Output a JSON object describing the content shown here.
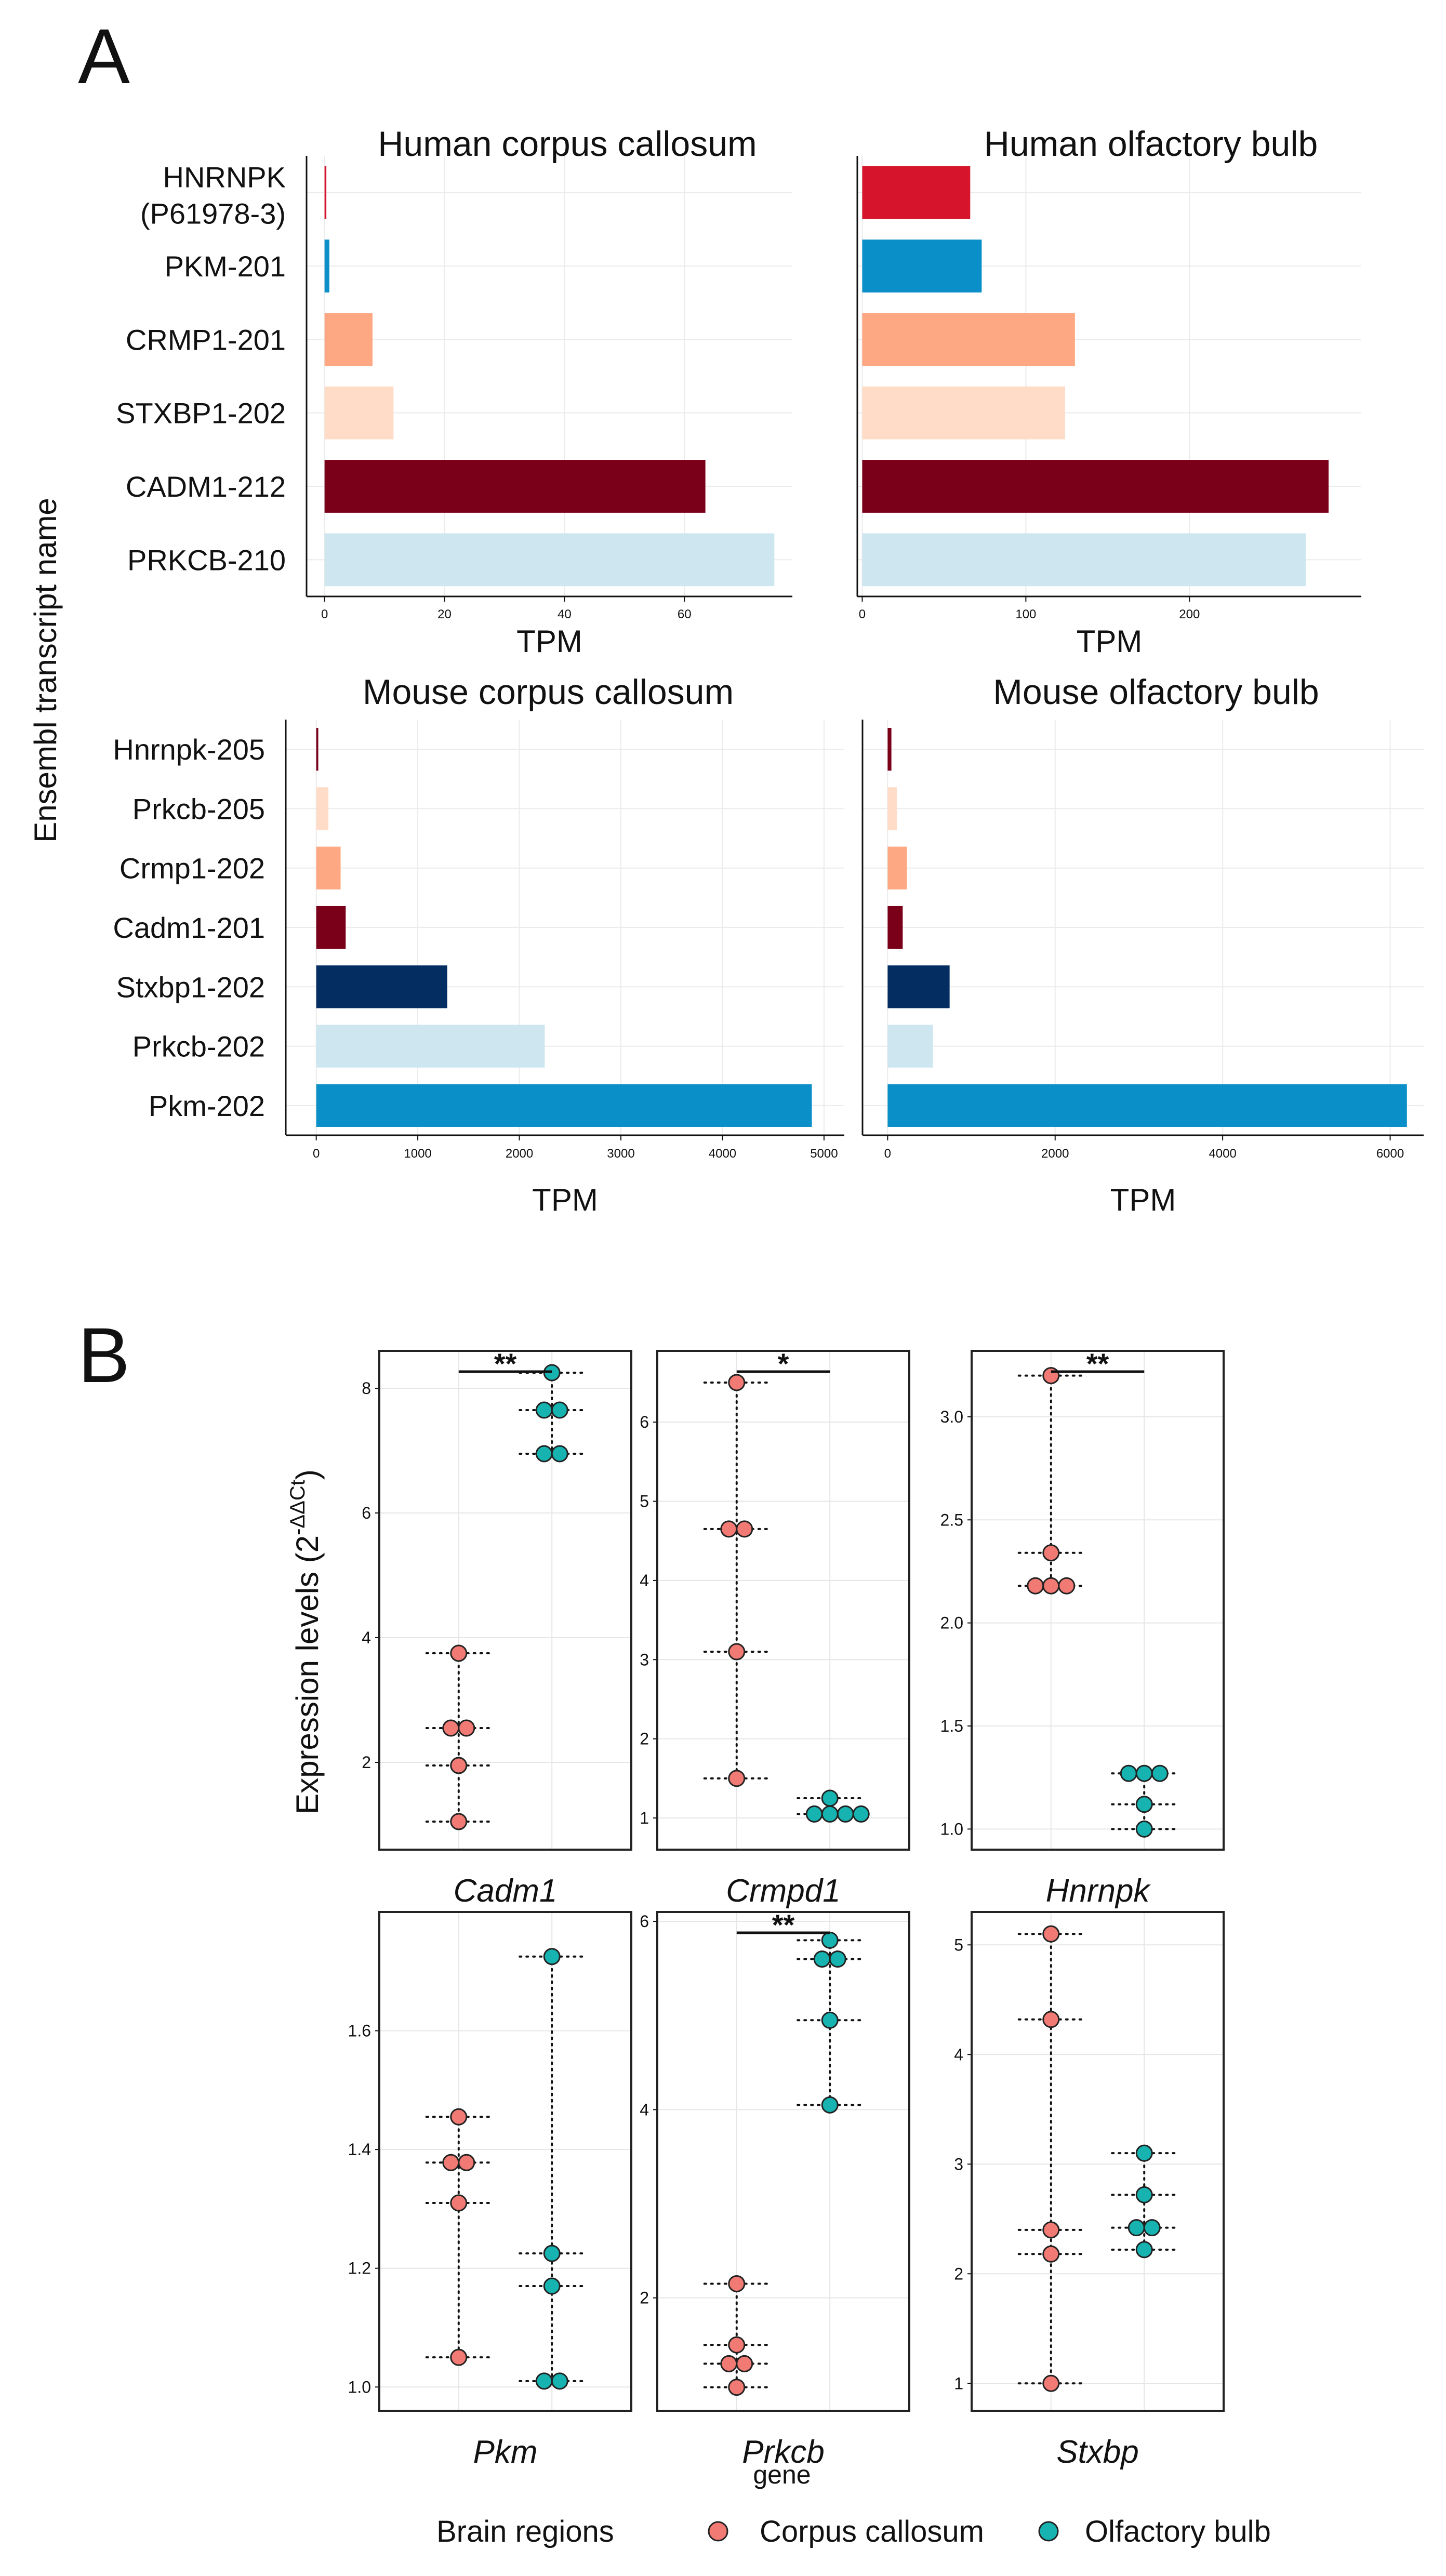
{
  "panels": {
    "a": "A",
    "b": "B"
  },
  "colors": {
    "hnrnpk": "#d6152d",
    "pkm": "#0a8fc8",
    "crmp1": "#fda882",
    "stxbp1_light": "#ffdcc8",
    "cadm1": "#7a0019",
    "prkcb_light": "#cde6f0",
    "stxbp1_mouse": "#042d62",
    "corpus": "#f17a74",
    "olfactory": "#16b3b0"
  },
  "chart_data": [
    {
      "type": "bar",
      "orientation": "horizontal",
      "title": "Human corpus callosum",
      "xlabel": "TPM",
      "ylabel": "Ensembl transcript name",
      "xlim": [
        -3,
        78
      ],
      "xticks": [
        0,
        20,
        40,
        60
      ],
      "xtick_labels": [
        "0",
        "20",
        "40",
        "60"
      ],
      "categories": [
        "HNRNPK (P61978-3)",
        "PKM-201",
        "CRMP1-201",
        "STXBP1-202",
        "CADM1-212",
        "PRKCB-210"
      ],
      "category_lines": [
        [
          "HNRNPK",
          "(P61978-3)"
        ],
        [
          "PKM-201"
        ],
        [
          "CRMP1-201"
        ],
        [
          "STXBP1-202"
        ],
        [
          "CADM1-212"
        ],
        [
          "PRKCB-210"
        ]
      ],
      "values": [
        0.3,
        0.8,
        8,
        11.5,
        63.5,
        75
      ],
      "bar_colors": [
        "hnrnpk",
        "pkm",
        "crmp1",
        "stxbp1_light",
        "cadm1",
        "prkcb_light"
      ]
    },
    {
      "type": "bar",
      "orientation": "horizontal",
      "title": "Human olfactory bulb",
      "xlabel": "TPM",
      "xlim": [
        -3,
        305
      ],
      "xticks": [
        0,
        100,
        200
      ],
      "xtick_labels": [
        "0",
        "100",
        "200"
      ],
      "categories": [
        "HNRNPK (P61978-3)",
        "PKM-201",
        "CRMP1-201",
        "STXBP1-202",
        "CADM1-212",
        "PRKCB-210"
      ],
      "values": [
        66,
        73,
        130,
        124,
        285,
        271
      ],
      "bar_colors": [
        "hnrnpk",
        "pkm",
        "crmp1",
        "stxbp1_light",
        "cadm1",
        "prkcb_light"
      ]
    },
    {
      "type": "bar",
      "orientation": "horizontal",
      "title": "Mouse corpus callosum",
      "xlabel": "TPM",
      "xlim": [
        -300,
        5200
      ],
      "xticks": [
        0,
        1000,
        2000,
        3000,
        4000,
        5000
      ],
      "xtick_labels": [
        "0",
        "1000",
        "2000",
        "3000",
        "4000",
        "5000"
      ],
      "categories": [
        "Hnrnpk-205",
        "Prkcb-205",
        "Crmp1-202",
        "Cadm1-201",
        "Stxbp1-202",
        "Prkcb-202",
        "Pkm-202"
      ],
      "category_lines": [
        [
          "Hnrnpk-205"
        ],
        [
          "Prkcb-205"
        ],
        [
          "Crmp1-202"
        ],
        [
          "Cadm1-201"
        ],
        [
          "Stxbp1-202"
        ],
        [
          "Prkcb-202"
        ],
        [
          "Pkm-202"
        ]
      ],
      "values": [
        20,
        120,
        240,
        290,
        1290,
        2250,
        4880
      ],
      "bar_colors": [
        "cadm1",
        "stxbp1_light",
        "crmp1",
        "cadm1",
        "stxbp1_mouse",
        "prkcb_light",
        "pkm"
      ]
    },
    {
      "type": "bar",
      "orientation": "horizontal",
      "title": "Mouse olfactory bulb",
      "xlabel": "TPM",
      "xlim": [
        -300,
        6400
      ],
      "xticks": [
        0,
        2000,
        4000,
        6000
      ],
      "xtick_labels": [
        "0",
        "2000",
        "4000",
        "6000"
      ],
      "categories": [
        "Hnrnpk-205",
        "Prkcb-205",
        "Crmp1-202",
        "Cadm1-201",
        "Stxbp1-202",
        "Prkcb-202",
        "Pkm-202"
      ],
      "values": [
        45,
        110,
        230,
        180,
        740,
        540,
        6200
      ],
      "bar_colors": [
        "cadm1",
        "stxbp1_light",
        "crmp1",
        "cadm1",
        "stxbp1_mouse",
        "prkcb_light",
        "pkm"
      ]
    },
    {
      "type": "scatter",
      "variant": "dot-plot",
      "gene": "Cadm1",
      "ylim": [
        0.6,
        8.6
      ],
      "yticks": [
        2,
        4,
        6,
        8
      ],
      "ytick_labels": [
        "2",
        "4",
        "6",
        "8"
      ],
      "groups": [
        {
          "name": "Corpus callosum",
          "points": [
            [
              0,
              3.75
            ],
            [
              -0.5,
              2.55
            ],
            [
              0.5,
              2.55
            ],
            [
              0,
              1.95
            ],
            [
              0,
              1.05
            ]
          ]
        },
        {
          "name": "Olfactory bulb",
          "points": [
            [
              0,
              8.25
            ],
            [
              -0.5,
              7.65
            ],
            [
              0.5,
              7.65
            ],
            [
              -0.5,
              6.95
            ],
            [
              0.5,
              6.95
            ]
          ]
        }
      ],
      "significance": "**"
    },
    {
      "type": "scatter",
      "variant": "dot-plot",
      "gene": "Crmpd1",
      "ylim": [
        0.6,
        6.9
      ],
      "yticks": [
        1,
        2,
        3,
        4,
        5,
        6
      ],
      "ytick_labels": [
        "1",
        "2",
        "3",
        "4",
        "5",
        "6"
      ],
      "groups": [
        {
          "name": "Corpus callosum",
          "points": [
            [
              0,
              6.5
            ],
            [
              -0.5,
              4.65
            ],
            [
              0.5,
              4.65
            ],
            [
              0,
              3.1
            ],
            [
              0,
              1.5
            ]
          ]
        },
        {
          "name": "Olfactory bulb",
          "points": [
            [
              0,
              1.25
            ],
            [
              -1,
              1.05
            ],
            [
              0,
              1.05
            ],
            [
              1,
              1.05
            ],
            [
              2,
              1.05
            ]
          ]
        }
      ],
      "significance": "*"
    },
    {
      "type": "scatter",
      "variant": "dot-plot",
      "gene": "Hnrnpk",
      "ylim": [
        0.9,
        3.32
      ],
      "yticks": [
        1.0,
        1.5,
        2.0,
        2.5,
        3.0
      ],
      "ytick_labels": [
        "1.0",
        "1.5",
        "2.0",
        "2.5",
        "3.0"
      ],
      "groups": [
        {
          "name": "Corpus callosum",
          "points": [
            [
              0,
              3.2
            ],
            [
              0,
              2.34
            ],
            [
              -1,
              2.18
            ],
            [
              0,
              2.18
            ],
            [
              1,
              2.18
            ]
          ]
        },
        {
          "name": "Olfactory bulb",
          "points": [
            [
              -1,
              1.27
            ],
            [
              0,
              1.27
            ],
            [
              1,
              1.27
            ],
            [
              0,
              1.12
            ],
            [
              0,
              1.0
            ]
          ]
        }
      ],
      "significance": "**"
    },
    {
      "type": "scatter",
      "variant": "dot-plot",
      "gene": "Pkm",
      "ylim": [
        0.96,
        1.8
      ],
      "yticks": [
        1.0,
        1.2,
        1.4,
        1.6
      ],
      "ytick_labels": [
        "1.0",
        "1.2",
        "1.4",
        "1.6"
      ],
      "groups": [
        {
          "name": "Corpus callosum",
          "points": [
            [
              0,
              1.455
            ],
            [
              -0.5,
              1.378
            ],
            [
              0.5,
              1.378
            ],
            [
              0,
              1.31
            ],
            [
              0,
              1.05
            ]
          ]
        },
        {
          "name": "Olfactory bulb",
          "points": [
            [
              0,
              1.725
            ],
            [
              0,
              1.225
            ],
            [
              0,
              1.17
            ],
            [
              -0.5,
              1.01
            ],
            [
              0.5,
              1.01
            ]
          ]
        }
      ],
      "significance": ""
    },
    {
      "type": "scatter",
      "variant": "dot-plot",
      "gene": "Prkcb",
      "ylim": [
        0.8,
        6.1
      ],
      "yticks": [
        2,
        4,
        6
      ],
      "ytick_labels": [
        "2",
        "4",
        "6"
      ],
      "groups": [
        {
          "name": "Corpus callosum",
          "points": [
            [
              0,
              2.15
            ],
            [
              0,
              1.5
            ],
            [
              -0.5,
              1.3
            ],
            [
              0.5,
              1.3
            ],
            [
              0,
              1.05
            ]
          ]
        },
        {
          "name": "Olfactory bulb",
          "points": [
            [
              0,
              5.8
            ],
            [
              -0.5,
              5.6
            ],
            [
              0.5,
              5.6
            ],
            [
              0,
              4.95
            ],
            [
              0,
              4.05
            ]
          ]
        }
      ],
      "significance": "**"
    },
    {
      "type": "scatter",
      "variant": "dot-plot",
      "gene": "Stxbp",
      "ylim": [
        0.75,
        5.3
      ],
      "yticks": [
        1,
        2,
        3,
        4,
        5
      ],
      "ytick_labels": [
        "1",
        "2",
        "3",
        "4",
        "5"
      ],
      "groups": [
        {
          "name": "Corpus callosum",
          "points": [
            [
              0,
              5.1
            ],
            [
              0,
              4.32
            ],
            [
              0,
              2.4
            ],
            [
              0,
              2.18
            ],
            [
              0,
              1.0
            ]
          ]
        },
        {
          "name": "Olfactory bulb",
          "points": [
            [
              0,
              3.1
            ],
            [
              0,
              2.72
            ],
            [
              -0.5,
              2.42
            ],
            [
              0.5,
              2.42
            ],
            [
              0,
              2.22
            ]
          ]
        }
      ],
      "significance": ""
    }
  ],
  "panel_b": {
    "ylabel_main": "Expression levels (2",
    "ylabel_super": "-ΔΔCt",
    "ylabel_close": ")",
    "xlabel": "gene"
  },
  "legend": {
    "title": "Brain regions",
    "items": [
      "Corpus callosum",
      "Olfactory bulb"
    ]
  }
}
